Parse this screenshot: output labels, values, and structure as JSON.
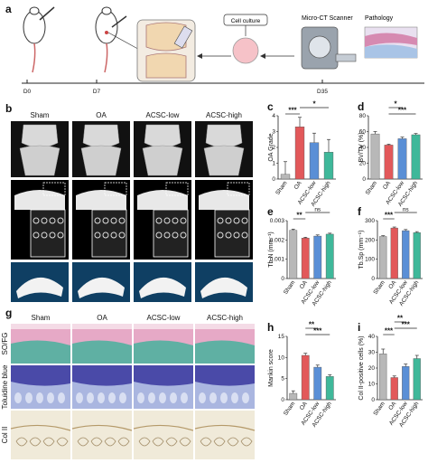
{
  "panel_letters": {
    "a": "a",
    "b": "b",
    "c": "c",
    "d": "d",
    "e": "e",
    "f": "f",
    "g": "g",
    "h": "h",
    "i": "i"
  },
  "timeline": {
    "d0": "D0",
    "d7": "D7",
    "d35": "D35",
    "cell_culture": "Cell culture",
    "microct": "Micro-CT Scanner",
    "pathology": "Pathology"
  },
  "groups": [
    "Sham",
    "OA",
    "ACSC-low",
    "ACSC-high"
  ],
  "stain_labels": [
    "SO/FG",
    "Toluidine blue",
    "Col II"
  ],
  "colors": {
    "Sham": "#b8b8b8",
    "OA": "#e2585a",
    "ACSC-low": "#5a8fd6",
    "ACSC-high": "#3fb89a"
  },
  "chart_data": [
    {
      "type": "bar",
      "panel": "c",
      "categories": [
        "Sham",
        "OA",
        "ACSC-low",
        "ACSC-high"
      ],
      "values": [
        0.3,
        3.3,
        2.3,
        1.7
      ],
      "errors": [
        0.8,
        0.6,
        0.6,
        0.8
      ],
      "ylabel": "OA Grade",
      "ylim": [
        0,
        4
      ],
      "yticks": [
        0,
        1,
        2,
        3,
        4
      ],
      "sig": [
        {
          "from": 0,
          "to": 1,
          "label": "***"
        },
        {
          "from": 1,
          "to": 3,
          "label": "*"
        }
      ]
    },
    {
      "type": "bar",
      "panel": "d",
      "categories": [
        "Sham",
        "OA",
        "ACSC-low",
        "ACSC-high"
      ],
      "values": [
        57,
        43,
        51,
        56
      ],
      "errors": [
        3,
        1,
        2,
        1.5
      ],
      "ylabel": "BV/TV (%)",
      "ylim": [
        0,
        80
      ],
      "yticks": [
        0,
        20,
        40,
        60,
        80
      ],
      "sig": [
        {
          "from": 1,
          "to": 3,
          "label": "***"
        },
        {
          "from": 1,
          "to": 2,
          "label": "*"
        }
      ]
    },
    {
      "type": "bar",
      "panel": "e",
      "categories": [
        "Sham",
        "OA",
        "ACSC-low",
        "ACSC-high"
      ],
      "values": [
        0.0025,
        0.0021,
        0.0022,
        0.0023
      ],
      "errors": [
        6e-05,
        4e-05,
        6e-05,
        5e-05
      ],
      "ylabel": "Tb.N (mm⁻¹)",
      "ylim": [
        0,
        0.003
      ],
      "yticks": [
        0,
        0.001,
        0.002,
        0.003
      ],
      "tick_labels": [
        "0",
        "0.001",
        "0.002",
        "0.003"
      ],
      "sig": [
        {
          "from": 0,
          "to": 1,
          "label": "**"
        },
        {
          "from": 1,
          "to": 3,
          "label": "ns"
        }
      ]
    },
    {
      "type": "bar",
      "panel": "f",
      "categories": [
        "Sham",
        "OA",
        "ACSC-low",
        "ACSC-high"
      ],
      "values": [
        218,
        262,
        248,
        238
      ],
      "errors": [
        4,
        5,
        6,
        5
      ],
      "ylabel": "Tb.Sp (mm⁻¹)",
      "ylim": [
        0,
        300
      ],
      "yticks": [
        0,
        100,
        200,
        300
      ],
      "sig": [
        {
          "from": 0,
          "to": 1,
          "label": "***"
        },
        {
          "from": 1,
          "to": 3,
          "label": "ns"
        }
      ]
    },
    {
      "type": "bar",
      "panel": "h",
      "categories": [
        "Sham",
        "OA",
        "ACSC-low",
        "ACSC-high"
      ],
      "values": [
        1.5,
        10.5,
        7.7,
        5.5
      ],
      "errors": [
        0.6,
        0.5,
        0.5,
        0.4
      ],
      "ylabel": "Mankin score",
      "ylim": [
        0,
        15
      ],
      "yticks": [
        0,
        5,
        10,
        15
      ],
      "sig": [
        {
          "from": 1,
          "to": 3,
          "label": "***"
        },
        {
          "from": 1,
          "to": 2,
          "label": "**"
        }
      ]
    },
    {
      "type": "bar",
      "panel": "i",
      "categories": [
        "Sham",
        "OA",
        "ACSC-low",
        "ACSC-high"
      ],
      "values": [
        29,
        14,
        21,
        26
      ],
      "errors": [
        3,
        1,
        1.5,
        2
      ],
      "ylabel": "Col II-positive cells (%)",
      "ylim": [
        0,
        40
      ],
      "yticks": [
        0,
        10,
        20,
        30,
        40
      ],
      "sig": [
        {
          "from": 0,
          "to": 1,
          "label": "***"
        },
        {
          "from": 1,
          "to": 3,
          "label": "***"
        },
        {
          "from": 1,
          "to": 2,
          "label": "**"
        }
      ]
    }
  ]
}
